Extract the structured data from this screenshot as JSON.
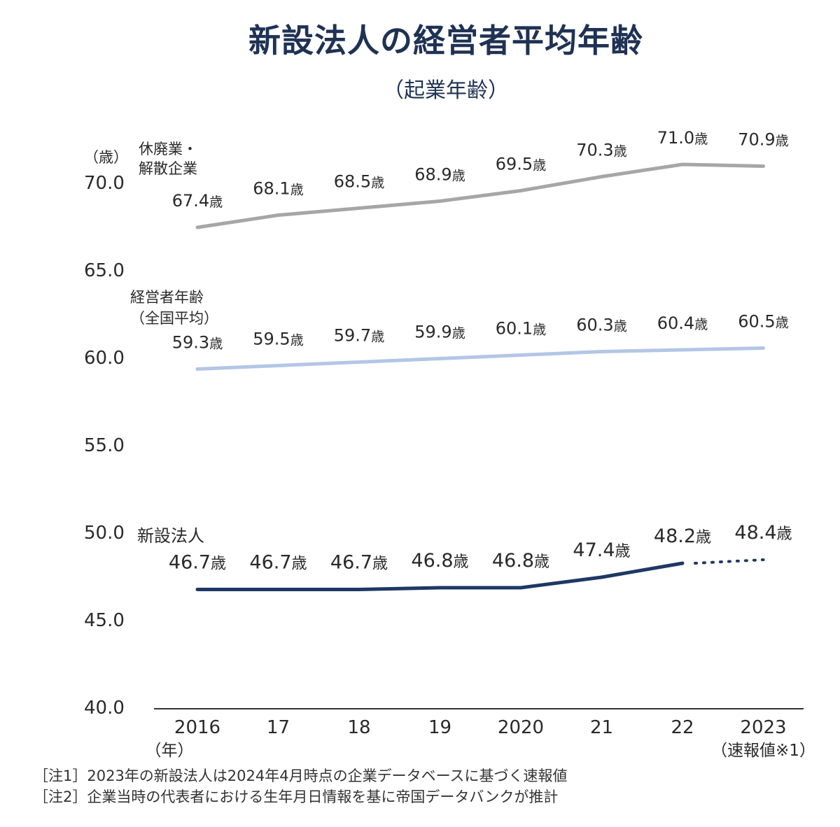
{
  "title": "新設法人の経営者平均年齢",
  "subtitle": "（起業年齢）",
  "notes": [
    "［注1］2023年の新設法人は2024年4月時点の企業データベースに基づく速報値",
    "［注2］企業当時の代表者における生年月日情報を基に帝国データバンクが推計"
  ],
  "chart_data": {
    "type": "line",
    "x": [
      "2016",
      "17",
      "18",
      "19",
      "2020",
      "21",
      "22",
      "2023"
    ],
    "xlabel": "（年）",
    "x_sub_label": "（速報値※1）",
    "ylabel": "（歳）",
    "ylim": [
      40.0,
      70.0
    ],
    "yticks": [
      "40.0",
      "45.0",
      "50.0",
      "55.0",
      "60.0",
      "65.0",
      "70.0"
    ],
    "grid": false,
    "value_suffix": "歳",
    "series": [
      {
        "name": "休廃業・解散企業",
        "name_lines": [
          "休廃業・",
          "解散企業"
        ],
        "color": "#a6a6a6",
        "values": [
          67.4,
          68.1,
          68.5,
          68.9,
          69.5,
          70.3,
          71.0,
          70.9
        ],
        "labels": [
          "67.4",
          "68.1",
          "68.5",
          "68.9",
          "69.5",
          "70.3",
          "71.0",
          "70.9"
        ]
      },
      {
        "name": "経営者年齢（全国平均）",
        "name_lines": [
          "経営者年齢",
          "（全国平均）"
        ],
        "color": "#b4c6e7",
        "values": [
          59.3,
          59.5,
          59.7,
          59.9,
          60.1,
          60.3,
          60.4,
          60.5
        ],
        "labels": [
          "59.3",
          "59.5",
          "59.7",
          "59.9",
          "60.1",
          "60.3",
          "60.4",
          "60.5"
        ]
      },
      {
        "name": "新設法人",
        "name_lines": [
          "新設法人"
        ],
        "color": "#1f3864",
        "values": [
          46.7,
          46.7,
          46.7,
          46.8,
          46.8,
          47.4,
          48.2,
          48.4
        ],
        "labels": [
          "46.7",
          "46.7",
          "46.7",
          "46.8",
          "46.8",
          "47.4",
          "48.2",
          "48.4"
        ],
        "dotted_last_segment": true
      }
    ]
  }
}
